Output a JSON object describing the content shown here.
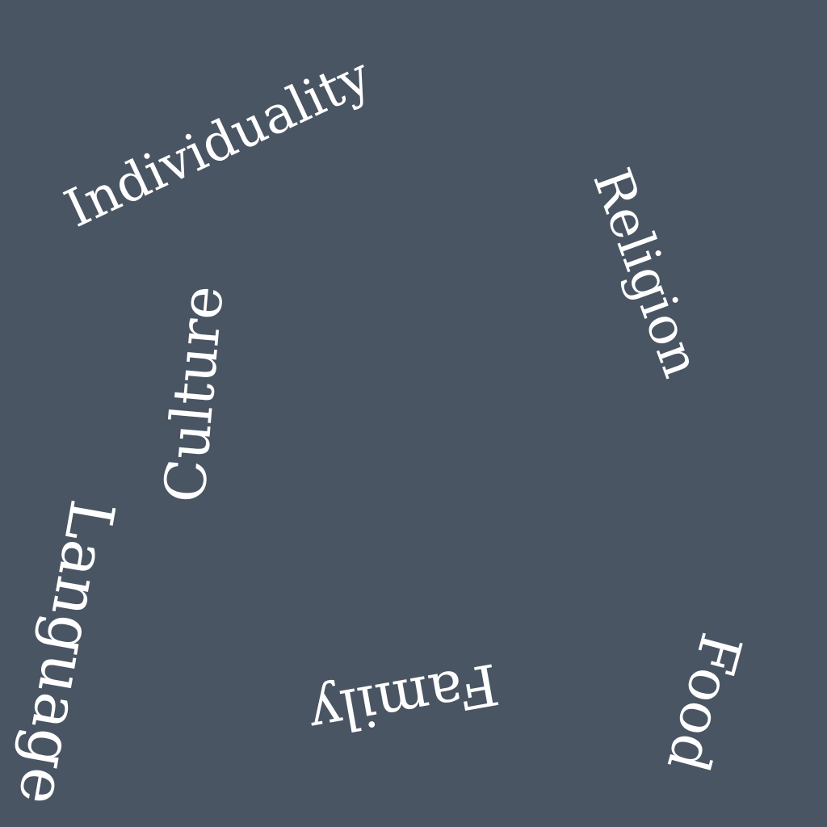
{
  "colors": {
    "background": "#4a5563",
    "text": "#ffffff"
  },
  "words": {
    "individuality": "Individuality",
    "religion": "Religion",
    "culture": "Culture",
    "language": "Language",
    "family": "Family",
    "food": "Food"
  }
}
